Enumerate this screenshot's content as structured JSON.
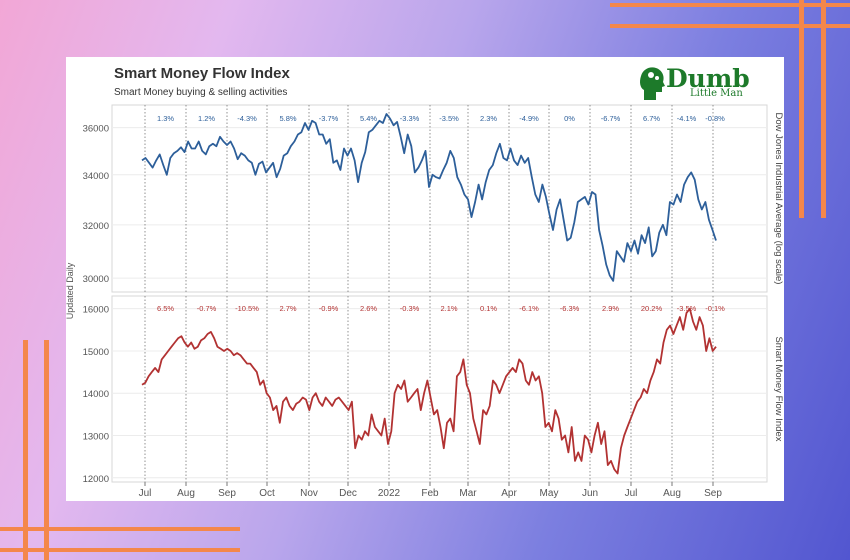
{
  "colors": {
    "top_series": "#2d5f9a",
    "bottom_series": "#b23232",
    "accent": "#f4874b",
    "brand": "#1d7a2a"
  },
  "header": {
    "title": "Smart Money Flow Index",
    "subtitle": "Smart Money buying & selling activities"
  },
  "logo": {
    "word": "Dumb",
    "sub": "Little Man",
    "icon": "head-brain-icon"
  },
  "chart_data": [
    {
      "type": "line",
      "title": "Smart Money Flow Index",
      "subtitle": "Smart Money buying & selling activities",
      "ylabel": "Dow Jones Industrial Average (log scale)",
      "side_label": "Updated Daily",
      "ylim": [
        29500,
        37000
      ],
      "yticks": [
        30000,
        32000,
        34000,
        36000
      ],
      "ytick_labels": [
        "30000",
        "32000",
        "34000",
        "36000"
      ],
      "x_tick_labels": [
        "Jul",
        "Aug",
        "Sep",
        "Oct",
        "Nov",
        "Dec",
        "2022",
        "Feb",
        "Mar",
        "Apr",
        "May",
        "Jun",
        "Jul",
        "Aug",
        "Sep"
      ],
      "month_changes": [
        "1.3%",
        "1.2%",
        "-4.3%",
        "5.8%",
        "-3.7%",
        "5.4%",
        "-3.3%",
        "-3.5%",
        "2.3%",
        "-4.9%",
        "0%",
        "-6.7%",
        "6.7%",
        "-4.1%",
        "-0.8%"
      ],
      "series": [
        {
          "values": [
            34600,
            34700,
            34500,
            34300,
            34600,
            34850,
            34400,
            34000,
            34700,
            34900,
            35000,
            35150,
            34950,
            35400,
            35100,
            35100,
            35400,
            35000,
            34850,
            35200,
            35300,
            35200,
            35600,
            35400,
            35250,
            35400,
            35100,
            34650,
            34900,
            34800,
            34600,
            34500,
            34000,
            34450,
            34550,
            34100,
            34300,
            34500,
            33900,
            34250,
            34800,
            34900,
            35200,
            35400,
            35700,
            35800,
            36200,
            35900,
            36300,
            36200,
            35700,
            35700,
            35300,
            35500,
            34500,
            34600,
            34200,
            35100,
            34800,
            35100,
            34600,
            33700,
            34500,
            34950,
            35800,
            35900,
            36100,
            36300,
            36200,
            36600,
            36400,
            36100,
            36250,
            35600,
            34900,
            35700,
            35200,
            34100,
            34300,
            34600,
            35000,
            33500,
            34000,
            33900,
            33850,
            34200,
            34500,
            35000,
            34700,
            33900,
            33600,
            33200,
            33000,
            32300,
            32900,
            33600,
            33000,
            33700,
            34200,
            34400,
            34900,
            35300,
            34700,
            34600,
            35100,
            34600,
            34400,
            34800,
            34500,
            34700,
            33900,
            33200,
            32900,
            33600,
            33100,
            32400,
            31800,
            32600,
            33000,
            32200,
            31400,
            31500,
            32100,
            32900,
            33000,
            33100,
            32800,
            33300,
            33200,
            31800,
            31200,
            30500,
            30100,
            29900,
            31000,
            30800,
            30600,
            31300,
            31000,
            31400,
            30900,
            31600,
            31300,
            31900,
            30800,
            31000,
            31700,
            32000,
            31600,
            32900,
            32800,
            33200,
            32900,
            33600,
            33900,
            34100,
            33800,
            33000,
            32600,
            32900,
            32200,
            31800,
            31400
          ]
        }
      ]
    },
    {
      "type": "line",
      "ylabel": "Smart Money Flow Index",
      "ylim": [
        11900,
        16300
      ],
      "yticks": [
        12000,
        13000,
        14000,
        15000,
        16000
      ],
      "ytick_labels": [
        "12000",
        "13000",
        "14000",
        "15000",
        "16000"
      ],
      "month_changes": [
        "6.5%",
        "-0.7%",
        "-10.5%",
        "2.7%",
        "-0.9%",
        "2.6%",
        "-0.3%",
        "2.1%",
        "0.1%",
        "-6.1%",
        "-6.3%",
        "2.9%",
        "20.2%",
        "-3.5%",
        "-0.1%"
      ],
      "series": [
        {
          "values": [
            14200,
            14250,
            14400,
            14500,
            14600,
            14500,
            14800,
            14900,
            15000,
            15100,
            15200,
            15300,
            15350,
            15200,
            15100,
            15200,
            15050,
            15100,
            15250,
            15300,
            15400,
            15450,
            15300,
            15100,
            15050,
            15000,
            15050,
            15000,
            14900,
            14950,
            14900,
            14800,
            14700,
            14700,
            14600,
            14500,
            14200,
            14300,
            14000,
            13900,
            13600,
            13700,
            13300,
            13800,
            13900,
            13700,
            13600,
            13750,
            13800,
            13900,
            13850,
            13600,
            13900,
            14000,
            13800,
            13700,
            13900,
            13800,
            13700,
            13850,
            13900,
            13800,
            13700,
            13600,
            13800,
            12700,
            13000,
            12900,
            13100,
            13000,
            13500,
            13200,
            13100,
            13000,
            13400,
            12800,
            13100,
            14000,
            14200,
            14100,
            14300,
            13800,
            13900,
            14000,
            14100,
            13600,
            14000,
            14300,
            13900,
            13500,
            13600,
            13200,
            12700,
            13300,
            13400,
            13100,
            14400,
            14500,
            14800,
            14200,
            14000,
            13400,
            13100,
            12800,
            13600,
            13500,
            13700,
            14300,
            14200,
            14000,
            14200,
            14400,
            14500,
            14600,
            14500,
            14800,
            14700,
            14300,
            14200,
            14500,
            14300,
            14400,
            14000,
            13200,
            13300,
            13100,
            13600,
            13400,
            12900,
            13000,
            12600,
            13200,
            12400,
            12600,
            12400,
            13000,
            12900,
            12600,
            13000,
            13300,
            12800,
            13100,
            12300,
            12400,
            12200,
            12100,
            12700,
            13000,
            13200,
            13400,
            13600,
            13800,
            13900,
            14100,
            14000,
            14300,
            14500,
            14800,
            14700,
            15200,
            15500,
            15600,
            15400,
            15600,
            15800,
            15500,
            15900,
            16000,
            15700,
            15500,
            15800,
            15600,
            15000,
            15300,
            15000,
            15100
          ]
        }
      ]
    }
  ]
}
